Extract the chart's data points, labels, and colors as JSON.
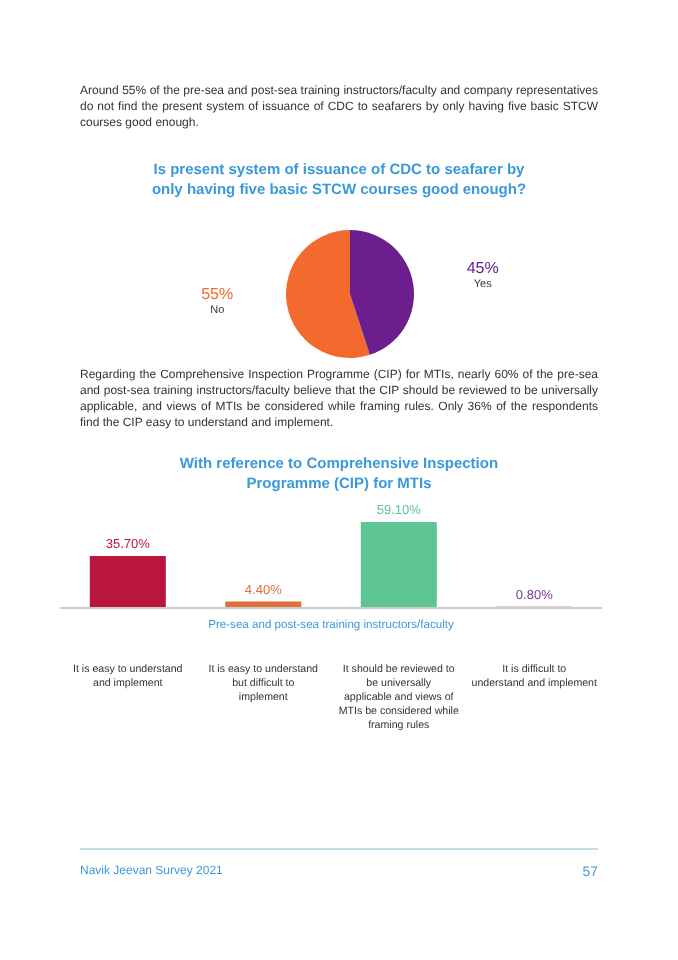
{
  "chart_data": [
    {
      "type": "pie",
      "title": "Is present system of issuance of CDC to seafarer by only having five basic STCW courses good enough?",
      "categories": [
        "No",
        "Yes"
      ],
      "values": [
        55,
        45
      ],
      "colors": [
        "#f26a2e",
        "#6c1d8e"
      ],
      "value_labels": [
        "55%",
        "45%"
      ],
      "annotations": [
        "Around 55% of the pre-sea and post-sea training instructors/faculty and company representatives do not find the present system of issuance of CDC to seafarers by only having five basic STCW courses good enough."
      ]
    },
    {
      "type": "bar",
      "title": "With reference to Comprehensive Inspection Programme (CIP) for MTIs",
      "xlabel": "Pre-sea and post-sea training instructors/faculty",
      "categories": [
        "It is easy to understand and implement",
        "It is easy to understand but difficult to implement",
        "It should be reviewed to be universally applicable and views of MTIs be considered while framing rules",
        "It is difficult to understand and implement"
      ],
      "values": [
        35.7,
        4.4,
        59.1,
        0.8
      ],
      "colors": [
        "#b8173b",
        "#e0703a",
        "#5cc592",
        "#7b3f98"
      ],
      "value_labels": [
        "35.70%",
        "4.40%",
        "59.10%",
        "0.80%"
      ],
      "annotations": [
        "Regarding the Comprehensive Inspection Programme (CIP) for MTIs, nearly 60% of the pre-sea and post-sea training instructors/faculty believe that the CIP should be reviewed to be universally applicable, and views of MTIs be considered while framing rules. Only 36% of the respondents find the CIP easy to understand and implement.",
        "Navik Jeevan Survey 2021",
        "57"
      ]
    }
  ]
}
